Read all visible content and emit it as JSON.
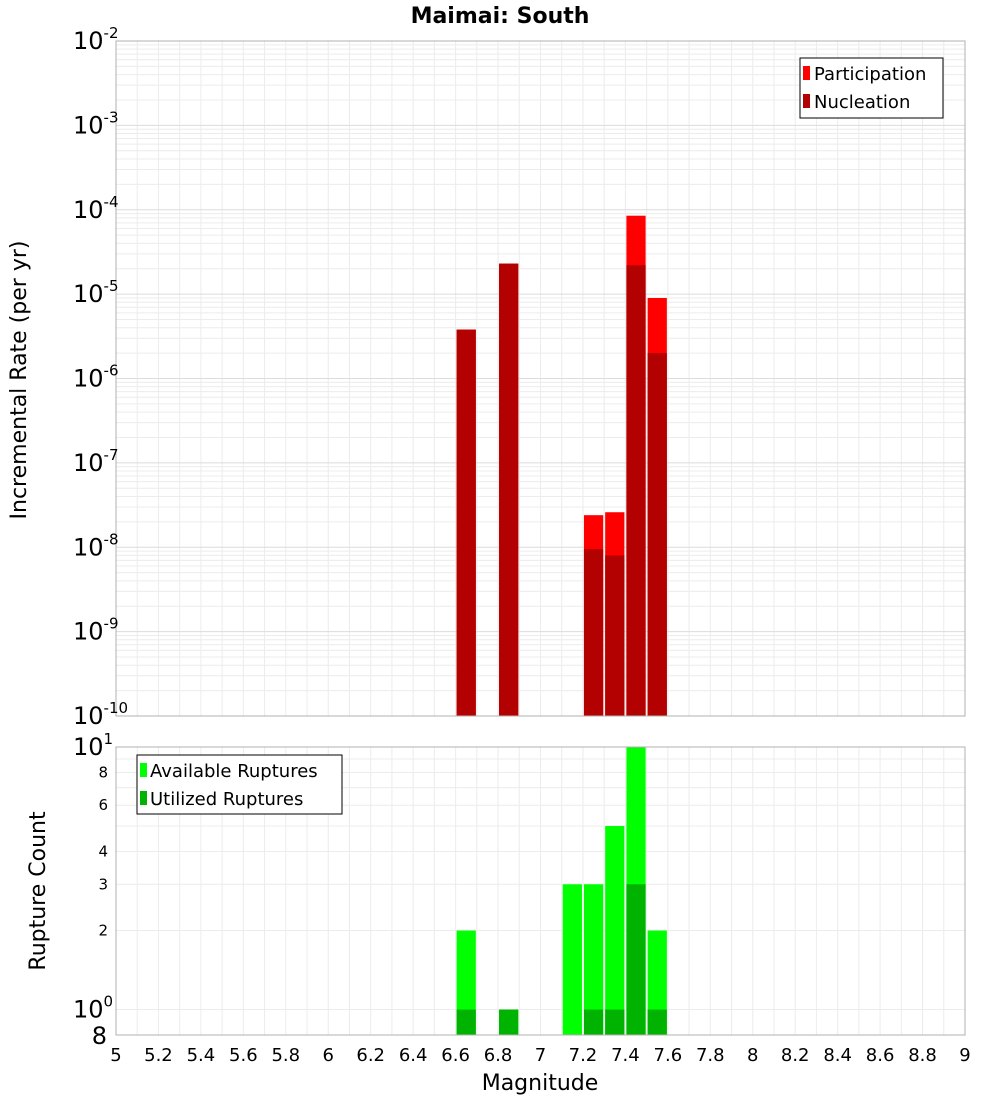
{
  "chart_data": [
    {
      "type": "bar",
      "title": "Maimai: South",
      "xlabel": "",
      "ylabel": "Incremental Rate (per yr)",
      "y_scale": "log",
      "ylim": [
        1e-10,
        0.01
      ],
      "xlim": [
        5,
        9
      ],
      "y_tick_exponents": [
        -10,
        -9,
        -8,
        -7,
        -6,
        -5,
        -4,
        -3,
        -2
      ],
      "bar_width": 0.1,
      "legend_position": "top-right",
      "grid": true,
      "series": [
        {
          "name": "Participation",
          "color": "#ff0000",
          "x": [
            6.65,
            6.85,
            7.25,
            7.35,
            7.45,
            7.55
          ],
          "values": [
            3.8e-06,
            2.3e-05,
            2.4e-08,
            2.6e-08,
            8.5e-05,
            9e-06
          ]
        },
        {
          "name": "Nucleation",
          "color": "#b30000",
          "x": [
            6.65,
            6.85,
            7.25,
            7.35,
            7.45,
            7.55
          ],
          "values": [
            3.8e-06,
            2.3e-05,
            9.5e-09,
            8e-09,
            2.2e-05,
            2e-06
          ]
        }
      ]
    },
    {
      "type": "bar",
      "title": "",
      "xlabel": "Magnitude",
      "ylabel": "Rupture Count",
      "y_scale": "log",
      "ylim": [
        0.8,
        10
      ],
      "xlim": [
        5,
        9
      ],
      "x_ticks": [
        "5",
        "5.2",
        "5.4",
        "5.6",
        "5.8",
        "6",
        "6.2",
        "6.4",
        "6.6",
        "6.8",
        "7",
        "7.2",
        "7.4",
        "7.6",
        "7.8",
        "8",
        "8.2",
        "8.4",
        "8.6",
        "8.8",
        "9"
      ],
      "y_minor_ticks": [
        "2",
        "3",
        "4",
        "6",
        "8"
      ],
      "y_bottom_label": "8",
      "bar_width": 0.1,
      "legend_position": "top-left",
      "grid": true,
      "series": [
        {
          "name": "Available Ruptures",
          "color": "#00ff00",
          "x": [
            6.65,
            6.85,
            7.15,
            7.25,
            7.35,
            7.45,
            7.55
          ],
          "values": [
            2,
            1,
            3,
            3,
            5,
            10,
            2
          ]
        },
        {
          "name": "Utilized Ruptures",
          "color": "#00b300",
          "x": [
            6.65,
            6.85,
            7.15,
            7.25,
            7.35,
            7.45,
            7.55
          ],
          "values": [
            1,
            1,
            0,
            1,
            1,
            3,
            1
          ]
        }
      ]
    }
  ]
}
